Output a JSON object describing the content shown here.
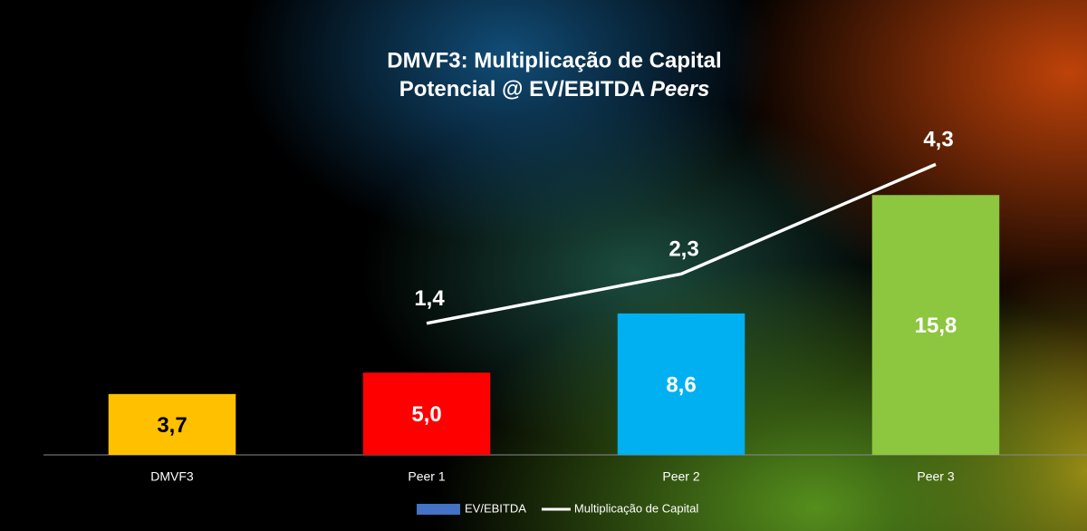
{
  "chart_data": {
    "type": "bar",
    "title_lines": [
      "DMVF3: Multiplicação de Capital",
      "Potencial @ EV/EBITDA"
    ],
    "title_italic": "Peers",
    "categories": [
      "DMVF3",
      "Peer 1",
      "Peer 2",
      "Peer 3"
    ],
    "series": [
      {
        "name": "EV/EBITDA",
        "color": "#4472c4",
        "colors": [
          "#ffc000",
          "#ff0000",
          "#00b0f0",
          "#8dc63f"
        ],
        "values": [
          3.7,
          5.0,
          8.6,
          15.8
        ],
        "value_labels": [
          "3,7",
          "5,0",
          "8,6",
          "15,8"
        ]
      },
      {
        "name": "Multiplicação de Capital",
        "type": "line",
        "axis": "y2",
        "color": "#ffffff",
        "values": [
          null,
          1.4,
          2.3,
          4.3
        ],
        "value_labels": [
          null,
          "1,4",
          "2,3",
          "4,3"
        ]
      }
    ],
    "ylim": [
      0,
      20
    ],
    "y2lim": [
      -1,
      5
    ]
  }
}
